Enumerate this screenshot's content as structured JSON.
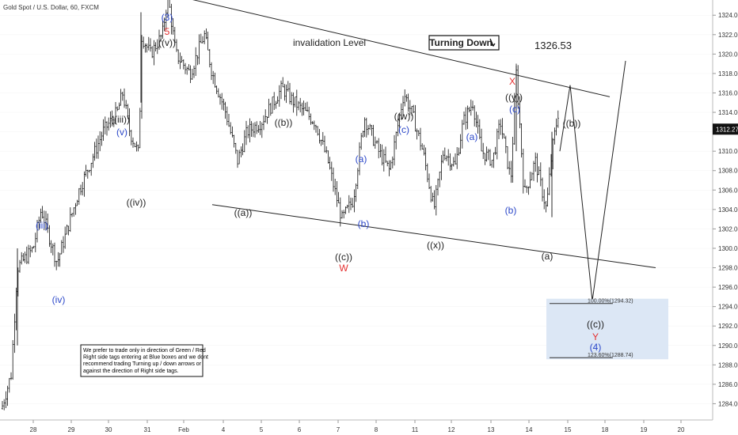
{
  "header": {
    "symbol_label": "Gold Spot / U.S. Dollar, 60, FXCM"
  },
  "colors": {
    "blue": "#2b47c9",
    "red": "#e53030",
    "black": "#222222",
    "grid": "#e4e4e4",
    "box": "#dce7f5",
    "price_tag": "#111111"
  },
  "chart_data": {
    "type": "ohlc",
    "y_axis": {
      "ticks": [
        1284,
        1286,
        1288,
        1290,
        1292,
        1294,
        1296,
        1298,
        1300,
        1302,
        1304,
        1306,
        1308,
        1310,
        1312,
        1314,
        1316,
        1318,
        1320,
        1322,
        1324,
        1326,
        1328,
        1330,
        1332
      ],
      "ylim": [
        1282.5,
        1333
      ]
    },
    "x_axis": {
      "tick_labels": [
        "28",
        "29",
        "30",
        "31",
        "Feb",
        "4",
        "5",
        "6",
        "7",
        "8",
        "11",
        "12",
        "13",
        "14",
        "15",
        "18",
        "19",
        "20"
      ]
    },
    "last_price": "1312.27",
    "approx_path": [
      [
        "start",
        1283.5
      ],
      [
        "28",
        1298
      ],
      [
        "(iii)",
        1304
      ],
      [
        "(iv)",
        1299
      ],
      [
        "(v)",
        1316
      ],
      [
        "((iv))",
        1309.5
      ],
      [
        "((v)) top",
        1326
      ],
      [
        "((a))",
        1308.5
      ],
      [
        "((b))",
        1317
      ],
      [
        "((c))",
        1303
      ],
      [
        "(a)",
        1313.5
      ],
      [
        "(b)",
        1305
      ],
      [
        "((w))",
        1316
      ],
      [
        "((x))",
        1304
      ],
      [
        "(a)",
        1315
      ],
      [
        "(b)",
        1307
      ],
      [
        "(c)",
        1318
      ],
      [
        "(a)",
        1304
      ],
      [
        "((b))",
        1314.5
      ]
    ],
    "annotations": [
      {
        "text": "(3)",
        "color": "blue"
      },
      {
        "text": "5",
        "color": "red"
      },
      {
        "text": "((v))",
        "color": "black"
      },
      {
        "text": "invalidation Level",
        "color": "black"
      },
      {
        "text": "Turning Down",
        "color": "black"
      },
      {
        "text": "1326.53",
        "color": "black"
      },
      {
        "text": "(iii)",
        "color": "blue"
      },
      {
        "text": "(iv)",
        "color": "blue"
      },
      {
        "text": "(v)",
        "color": "blue"
      },
      {
        "text": "((iii))",
        "color": "black"
      },
      {
        "text": "((iv))",
        "color": "black"
      },
      {
        "text": "((a))",
        "color": "black"
      },
      {
        "text": "((b))",
        "color": "black"
      },
      {
        "text": "(a)",
        "color": "blue"
      },
      {
        "text": "(b)",
        "color": "blue"
      },
      {
        "text": "((c))",
        "color": "black"
      },
      {
        "text": "W",
        "color": "red"
      },
      {
        "text": "((w))",
        "color": "black"
      },
      {
        "text": "(c)",
        "color": "blue"
      },
      {
        "text": "((x))",
        "color": "black"
      },
      {
        "text": "(a)",
        "color": "blue"
      },
      {
        "text": "X",
        "color": "red"
      },
      {
        "text": "((y))",
        "color": "black"
      },
      {
        "text": "(c)",
        "color": "blue"
      },
      {
        "text": "(b)",
        "color": "blue"
      },
      {
        "text": "(a)",
        "color": "black"
      },
      {
        "text": "((b))",
        "color": "black"
      },
      {
        "text": "((c))",
        "color": "black"
      },
      {
        "text": "Y",
        "color": "red"
      },
      {
        "text": "(4)",
        "color": "blue"
      }
    ],
    "fib_labels": [
      "100.00%(1294.32)",
      "123.60%(1288.74)"
    ],
    "fib_levels": [
      1294.32,
      1288.74
    ],
    "invalidation_price": 1326.53,
    "note_lines": [
      "We prefer to trade only in direction of Green / Red",
      "Right side tags entering at Blue boxes and we dont",
      "recommend trading Turning up / down arrows or",
      "against the direction of Right side tags."
    ]
  }
}
